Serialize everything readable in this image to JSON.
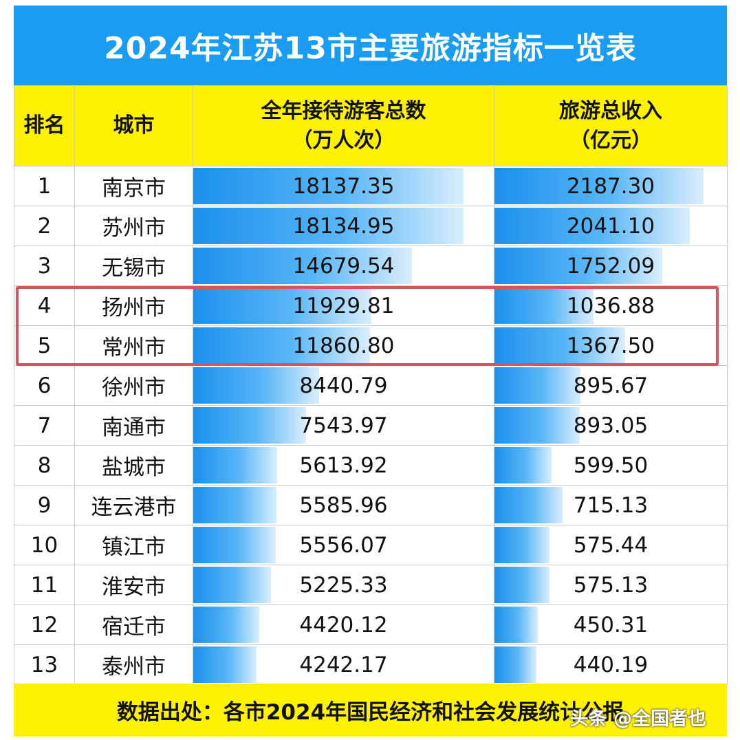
{
  "title": "2024年江苏13市主要旅游指标一览表",
  "chart_data": {
    "type": "table",
    "title": "2024年江苏13市主要旅游指标一览表",
    "headers": {
      "rank": "排名",
      "city": "城市",
      "visitors": [
        "全年接待游客总数",
        "（万人次）"
      ],
      "revenue": [
        "旅游总收入",
        "（亿元）"
      ]
    },
    "rows": [
      {
        "rank": "1",
        "city": "南京市",
        "visitors": "18137.35",
        "revenue": "2187.30"
      },
      {
        "rank": "2",
        "city": "苏州市",
        "visitors": "18134.95",
        "revenue": "2041.10"
      },
      {
        "rank": "3",
        "city": "无锡市",
        "visitors": "14679.54",
        "revenue": "1752.09"
      },
      {
        "rank": "4",
        "city": "扬州市",
        "visitors": "11929.81",
        "revenue": "1036.88"
      },
      {
        "rank": "5",
        "city": "常州市",
        "visitors": "11860.80",
        "revenue": "1367.50"
      },
      {
        "rank": "6",
        "city": "徐州市",
        "visitors": "8440.79",
        "revenue": "895.67"
      },
      {
        "rank": "7",
        "city": "南通市",
        "visitors": "7543.97",
        "revenue": "893.05"
      },
      {
        "rank": "8",
        "city": "盐城市",
        "visitors": "5613.92",
        "revenue": "599.50"
      },
      {
        "rank": "9",
        "city": "连云港市",
        "visitors": "5585.96",
        "revenue": "715.13"
      },
      {
        "rank": "10",
        "city": "镇江市",
        "visitors": "5556.07",
        "revenue": "575.44"
      },
      {
        "rank": "11",
        "city": "淮安市",
        "visitors": "5225.33",
        "revenue": "575.13"
      },
      {
        "rank": "12",
        "city": "宿迁市",
        "visitors": "4420.12",
        "revenue": "450.31"
      },
      {
        "rank": "13",
        "city": "泰州市",
        "visitors": "4242.17",
        "revenue": "440.19"
      }
    ],
    "highlighted_ranks": [
      "4",
      "5"
    ]
  },
  "footer": "数据出处：各市2024年国民经济和社会发展统计公报",
  "watermark": "头条 @全国者也",
  "colors": {
    "title_bg": "#1a9cf3",
    "header_bg": "#fff200",
    "bar": "#1b90ec",
    "highlight": "#d8545a"
  }
}
